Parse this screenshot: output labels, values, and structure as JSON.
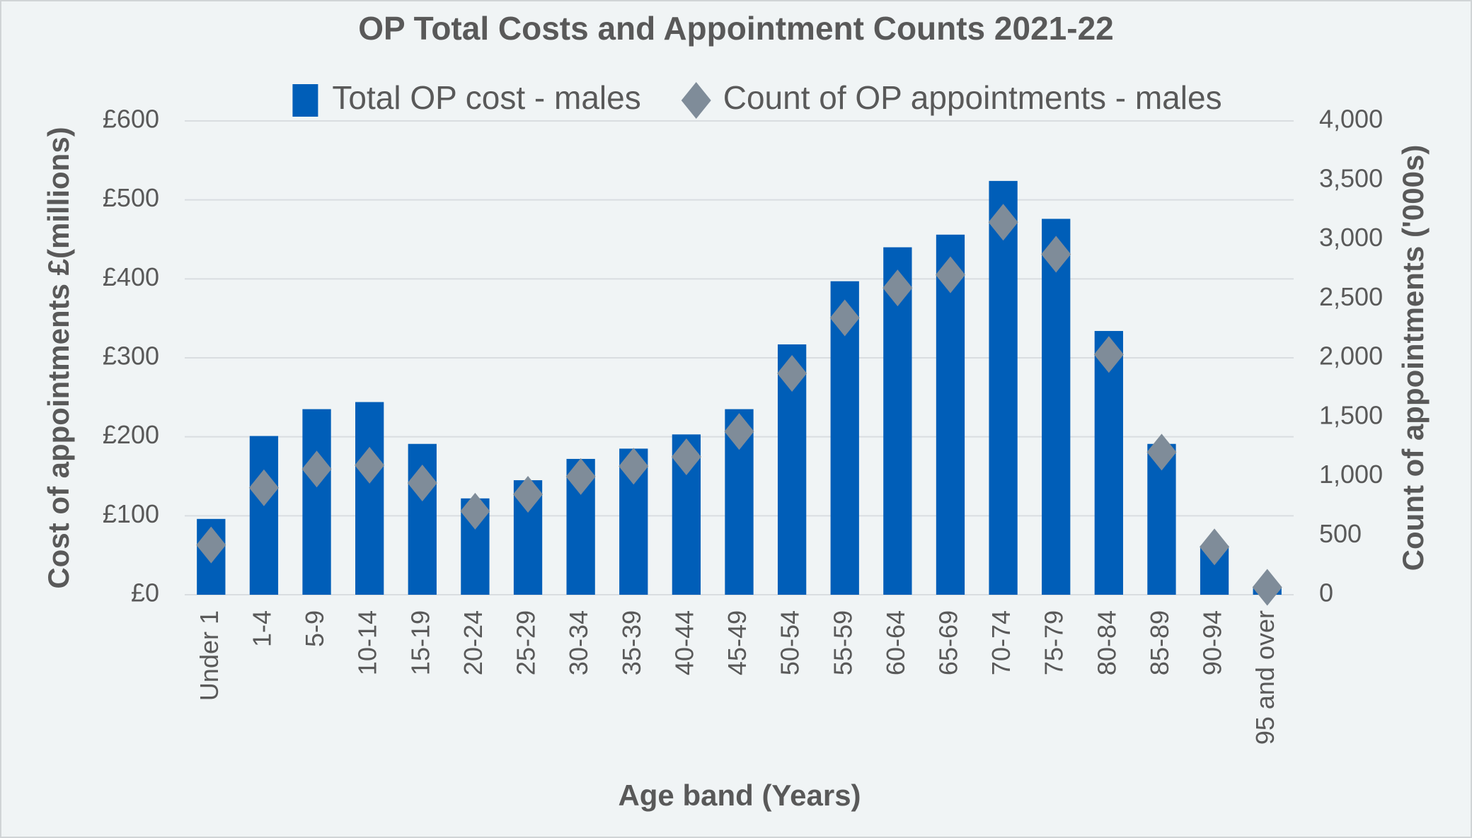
{
  "chart_data": {
    "type": "bar_scatter",
    "title": "OP Total Costs and Appointment Counts 2021-22",
    "categories": [
      "Under 1",
      "1-4",
      "5-9",
      "10-14",
      "15-19",
      "20-24",
      "25-29",
      "30-34",
      "35-39",
      "40-44",
      "45-49",
      "50-54",
      "55-59",
      "60-64",
      "65-69",
      "70-74",
      "75-79",
      "80-84",
      "85-89",
      "90-94",
      "95 and over"
    ],
    "series": [
      {
        "name": "Total OP cost - males",
        "type": "bar",
        "color": "#005eb8",
        "values": [
          96,
          201,
          235,
          244,
          191,
          122,
          145,
          172,
          185,
          203,
          235,
          317,
          397,
          440,
          456,
          524,
          476,
          334,
          191,
          62,
          10
        ]
      },
      {
        "name": "Count of OP appointments - males",
        "type": "scatter",
        "axis": "y2",
        "color": "#7f8c99",
        "values": [
          420,
          903,
          1061,
          1093,
          943,
          705,
          848,
          998,
          1085,
          1164,
          1378,
          1869,
          2337,
          2590,
          2701,
          3145,
          2875,
          2028,
          1204,
          404,
          63
        ]
      }
    ],
    "x_label": "Age band (Years)",
    "y_label": "Cost of appointments £(millions)",
    "y2_label": "Count of appointments ('000s)",
    "ylim": [
      0,
      600
    ],
    "yticks": [
      {
        "value": 0,
        "label": "£0"
      },
      {
        "value": 100,
        "label": "£100"
      },
      {
        "value": 200,
        "label": "£200"
      },
      {
        "value": 300,
        "label": "£300"
      },
      {
        "value": 400,
        "label": "£400"
      },
      {
        "value": 500,
        "label": "£500"
      },
      {
        "value": 600,
        "label": "£600"
      }
    ],
    "y2lim": [
      0,
      4000
    ],
    "y2ticks": [
      0,
      500,
      {
        "value": 1000,
        "label": "1,000"
      },
      {
        "value": 1500,
        "label": "1,500"
      },
      {
        "value": 2000,
        "label": "2,000"
      },
      {
        "value": 2500,
        "label": "2,500"
      },
      {
        "value": 3000,
        "label": "3,000"
      },
      {
        "value": 3500,
        "label": "3,500"
      },
      {
        "value": 4000,
        "label": "4,000"
      }
    ],
    "grid": true,
    "legend": "top"
  }
}
